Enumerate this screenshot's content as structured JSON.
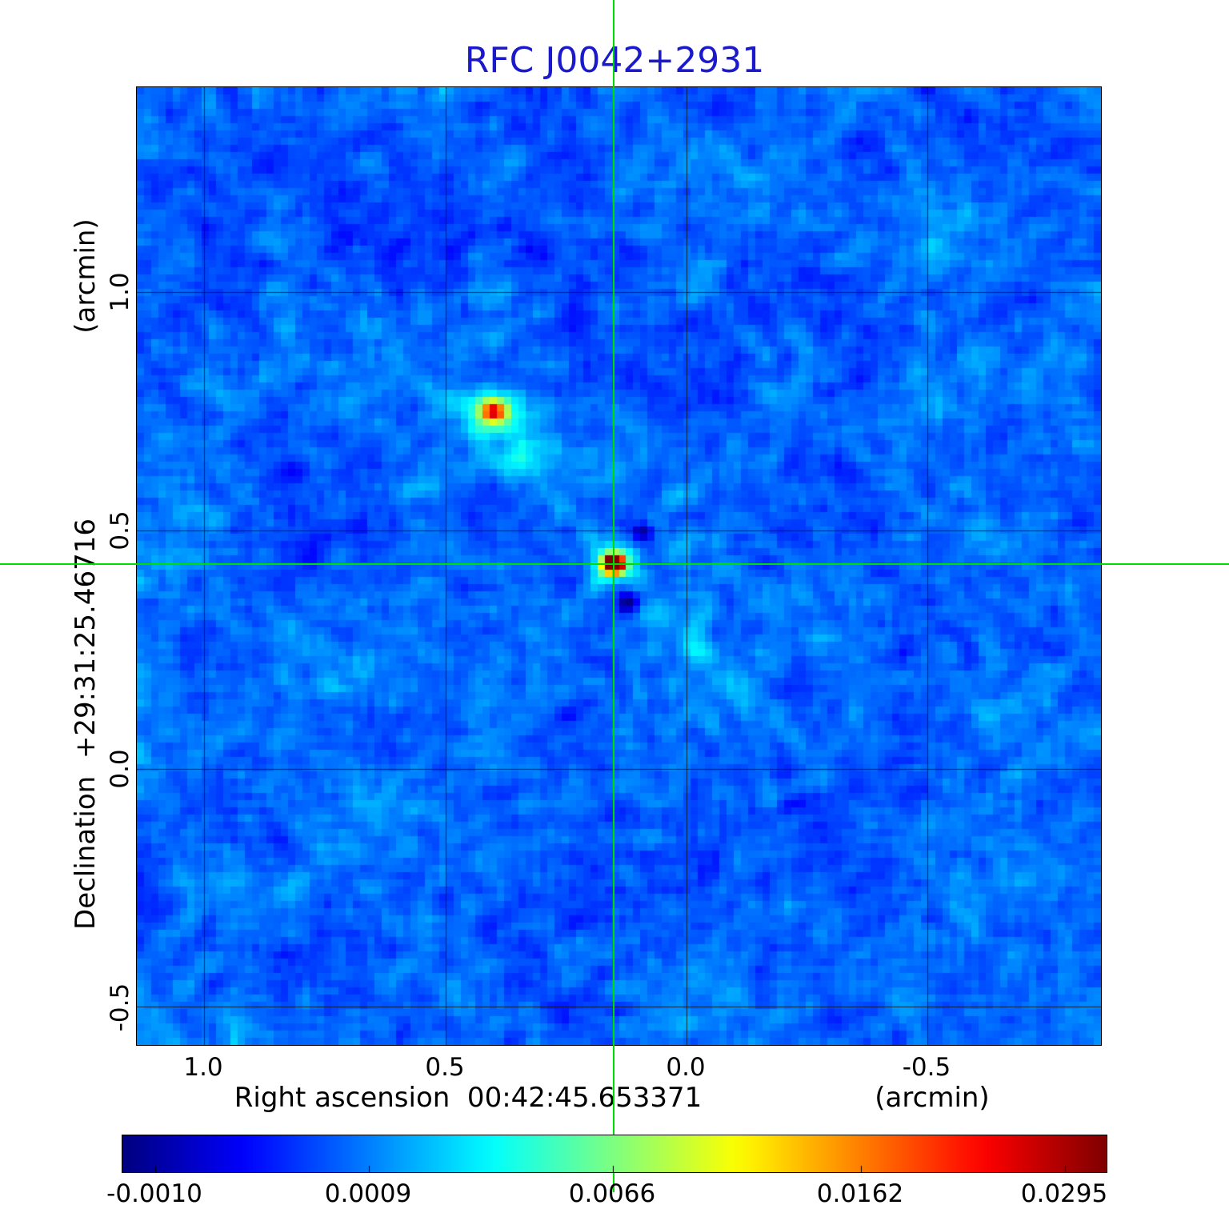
{
  "title": "RFC J0042+2931",
  "colors": {
    "title_blue": "#1a1acc",
    "crosshair_green": "#00dd00",
    "grid_line": "#141414",
    "figure_background": "#ffffff"
  },
  "axes": {
    "y": {
      "unit_label": "(arcmin)",
      "axis_label": "Declination  +29:31:25.46716",
      "tick_labels": [
        "1.0",
        "0.5",
        "0.0",
        "-0.5"
      ]
    },
    "x": {
      "axis_label": "Right ascension  00:42:45.653371",
      "unit_label": "(arcmin)",
      "tick_labels": [
        "1.0",
        "0.5",
        "0.0",
        "-0.5"
      ]
    }
  },
  "colorbar": {
    "tick_labels": [
      "-0.0010",
      "0.0009",
      "0.0066",
      "0.0162",
      "0.0295"
    ]
  },
  "chart_data": {
    "type": "heatmap",
    "title": "RFC J0042+2931",
    "xlabel": "Right ascension 00:42:45.653371 (arcmin)",
    "ylabel": "Declination +29:31:25.46716 (arcmin)",
    "x_range_arcmin": [
      1.14,
      -0.86
    ],
    "y_range_arcmin": [
      -0.58,
      1.43
    ],
    "x_ticks_arcmin": [
      1.0,
      0.5,
      0.0,
      -0.5
    ],
    "y_ticks_arcmin": [
      1.0,
      0.5,
      0.0,
      -0.5
    ],
    "grid": true,
    "colormap": "jet-like (dark blue through cyan, yellow, orange to dark red)",
    "intensity_scale": [
      -0.001,
      0.0009,
      0.0066,
      0.0162,
      0.0295
    ],
    "crosshair_arcmin": {
      "x": 0.15,
      "y": 0.43
    },
    "sources": [
      {
        "name": "primary compact source at phase center",
        "x_arcmin": 0.15,
        "y_arcmin": 0.43,
        "peak_intensity": 0.0295
      },
      {
        "name": "secondary extended component",
        "x_arcmin": 0.4,
        "y_arcmin": 0.75,
        "peak_intensity": 0.016
      }
    ],
    "background": "low-level blue noise field near zero intensity with faint diagonal sidelobe streaks through the primary source and small negative (dark navy) sidelobes beside it"
  }
}
